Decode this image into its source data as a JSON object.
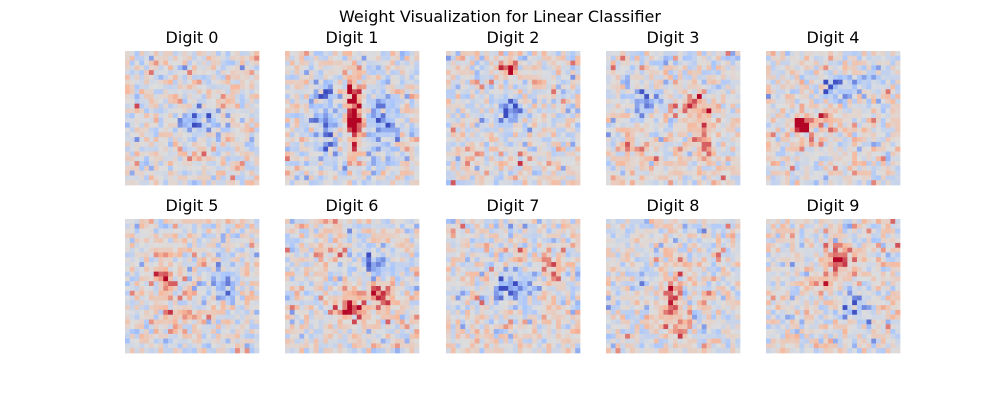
{
  "chart_data": {
    "type": "heatmap",
    "title": "Weight Visualization for Linear Classifier",
    "colormap": "coolwarm",
    "colormap_stops": [
      "#3b4cc0",
      "#aac7fd",
      "#dddddd",
      "#f7b89c",
      "#b40426"
    ],
    "grid_size": [
      28,
      28
    ],
    "axes_visible": false,
    "layout": "2 rows x 5 columns",
    "panels": [
      {
        "label": "Digit 0",
        "pattern": "blue center, red ring"
      },
      {
        "label": "Digit 1",
        "pattern": "red vertical stroke in center"
      },
      {
        "label": "Digit 2",
        "pattern": "mixed, red spot top"
      },
      {
        "label": "Digit 3",
        "pattern": "red blobs right, blue left"
      },
      {
        "label": "Digit 4",
        "pattern": "red left-middle, blue top-center"
      },
      {
        "label": "Digit 5",
        "pattern": "red left, blue right"
      },
      {
        "label": "Digit 6",
        "pattern": "red lower loop, blue upper right"
      },
      {
        "label": "Digit 7",
        "pattern": "blue center-left, red right"
      },
      {
        "label": "Digit 8",
        "pattern": "red center diagonal"
      },
      {
        "label": "Digit 9",
        "pattern": "red top ring"
      }
    ]
  }
}
